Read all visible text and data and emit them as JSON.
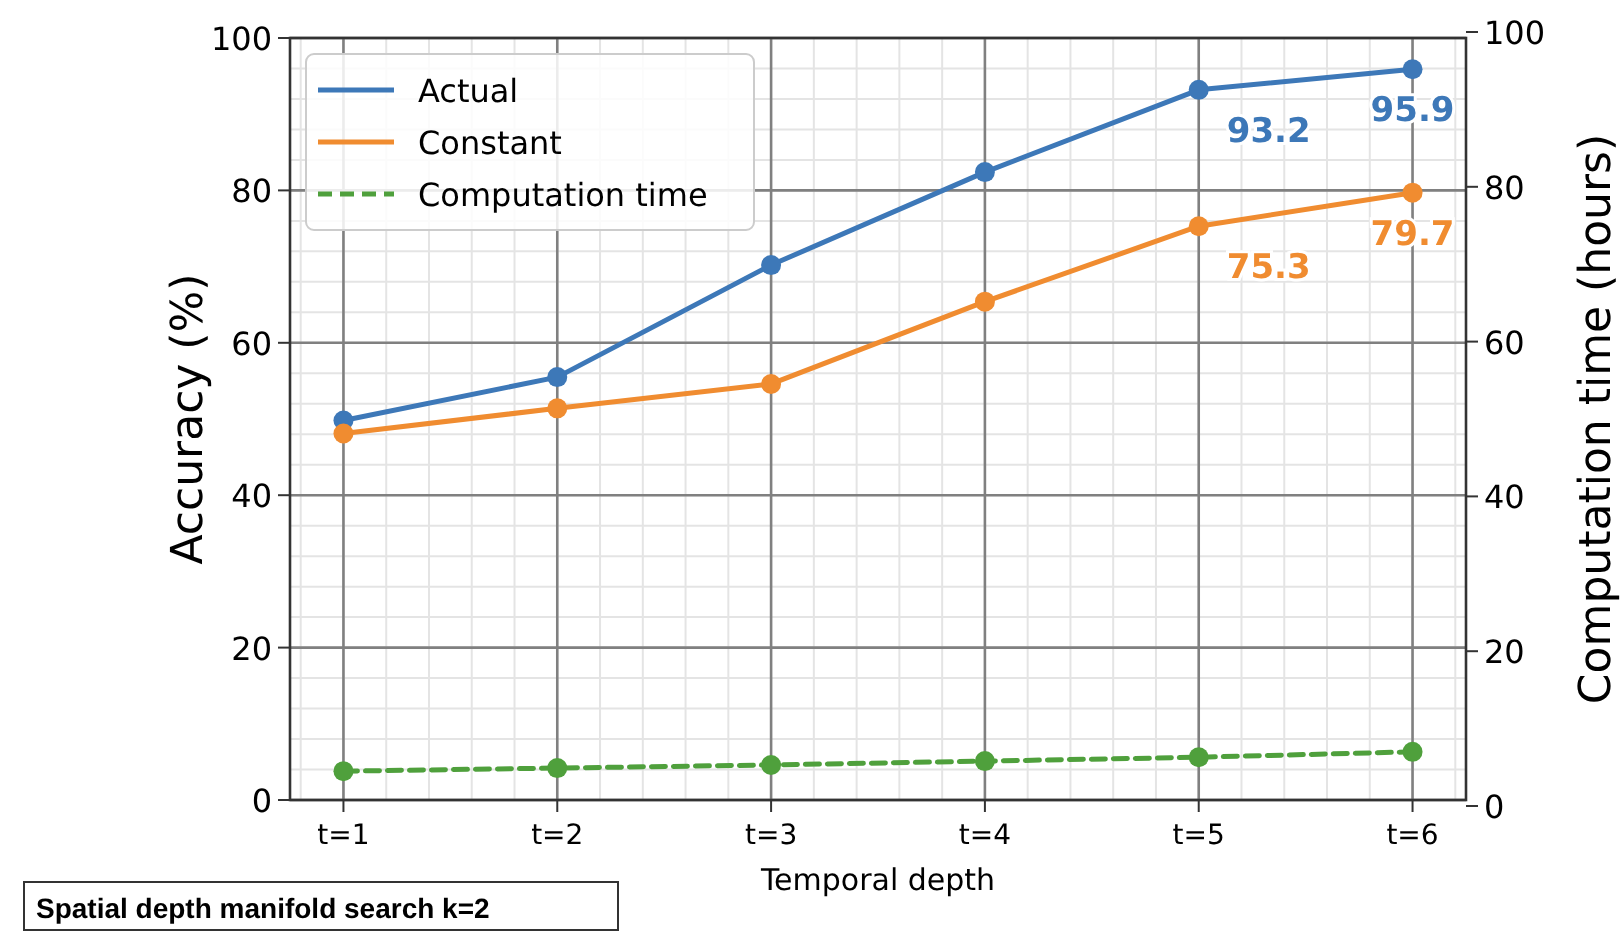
{
  "chart_data": {
    "type": "line",
    "xlabel": "Temporal depth",
    "ylabel": "Accuracy (%)",
    "y2label": "Computation time (hours)",
    "x": [
      1,
      2,
      3,
      4,
      5,
      6
    ],
    "xlim": [
      0.75,
      6.25
    ],
    "xticks": [
      {
        "value": 1,
        "label": "t=1"
      },
      {
        "value": 2,
        "label": "t=2"
      },
      {
        "value": 3,
        "label": "t=3"
      },
      {
        "value": 4,
        "label": "t=4"
      },
      {
        "value": 5,
        "label": "t=5"
      },
      {
        "value": 6,
        "label": "t=6"
      }
    ],
    "ylim": [
      0,
      100
    ],
    "yticks": [
      0,
      20,
      40,
      60,
      80,
      100
    ],
    "y2lim": [
      0,
      100
    ],
    "y2ticks": [
      0,
      20,
      40,
      60,
      80,
      100
    ],
    "grid": true,
    "legend": "top left",
    "marker": "circle",
    "series": [
      {
        "name": "Actual",
        "color": "#3d78b8",
        "values": [
          49.8,
          55.5,
          70.2,
          82.4,
          93.2,
          95.9
        ],
        "value_labels": [
          null,
          null,
          null,
          null,
          "93.2",
          "95.9"
        ]
      },
      {
        "name": "Constant",
        "color": "#f08c30",
        "values": [
          48.1,
          51.4,
          54.6,
          65.4,
          75.3,
          79.7
        ],
        "value_labels": [
          null,
          null,
          null,
          null,
          "75.3",
          "79.7"
        ]
      },
      {
        "name": "Computation time",
        "color": "#4fa03c",
        "axis": "y2",
        "line_style": "dashed",
        "values": [
          4.5,
          4.9,
          5.3,
          5.8,
          6.3,
          7.0
        ]
      }
    ],
    "annotations": [
      "Spatial depth manifold search k=2"
    ]
  }
}
